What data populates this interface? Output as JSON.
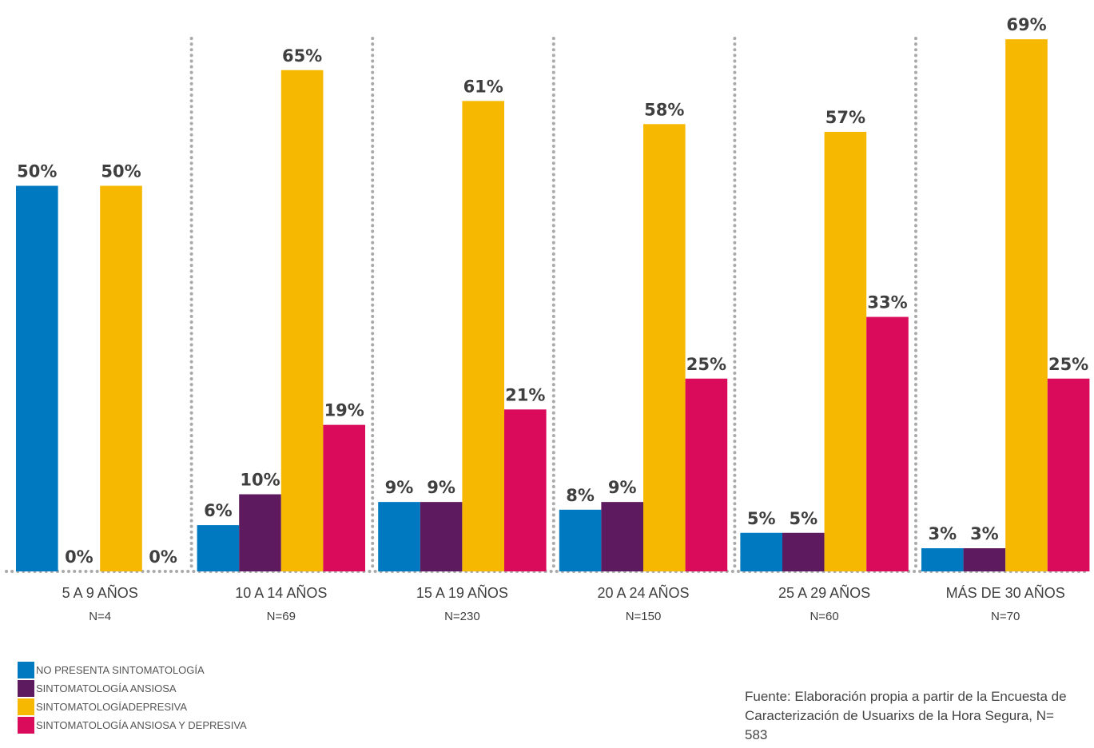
{
  "chart_data": {
    "type": "bar",
    "categories": [
      "5 A 9 AÑOS",
      "10 A 14 AÑOS",
      "15 A 19 AÑOS",
      "20 A 24 AÑOS",
      "25 A 29 AÑOS",
      "MÁS DE 30 AÑOS"
    ],
    "sample_sizes": [
      "N=4",
      "N=69",
      "N=230",
      "N=150",
      "N=60",
      "N=70"
    ],
    "series": [
      {
        "name": "NO PRESENTA SINTOMATOLOGÍA",
        "color": "#0079C1",
        "values": [
          50,
          6,
          9,
          8,
          5,
          3
        ],
        "labels": [
          "50%",
          "6%",
          "9%",
          "8%",
          "5%",
          "3%"
        ]
      },
      {
        "name": "SINTOMATOLOGÍA ANSIOSA",
        "color": "#5E1A5E",
        "values": [
          0,
          10,
          9,
          9,
          5,
          3
        ],
        "labels": [
          "0%",
          "10%",
          "9%",
          "9%",
          "5%",
          "3%"
        ]
      },
      {
        "name": "SINTOMATOLOGÍADEPRESIVA",
        "color": "#F6B800",
        "values": [
          50,
          65,
          61,
          58,
          57,
          69
        ],
        "labels": [
          "50%",
          "65%",
          "61%",
          "58%",
          "57%",
          "69%"
        ]
      },
      {
        "name": "SINTOMATOLOGÍA ANSIOSA Y DEPRESIVA",
        "color": "#D90B5A",
        "values": [
          0,
          19,
          21,
          25,
          33,
          25
        ],
        "labels": [
          "0%",
          "19%",
          "21%",
          "25%",
          "33%",
          "25%"
        ]
      }
    ],
    "ylim": [
      0,
      70
    ],
    "grid": false,
    "legend_position": "bottom-left"
  },
  "source_note": "Fuente: Elaboración propia a partir de la Encuesta de Caracterización de Usuarixs de la Hora Segura, N= 583"
}
